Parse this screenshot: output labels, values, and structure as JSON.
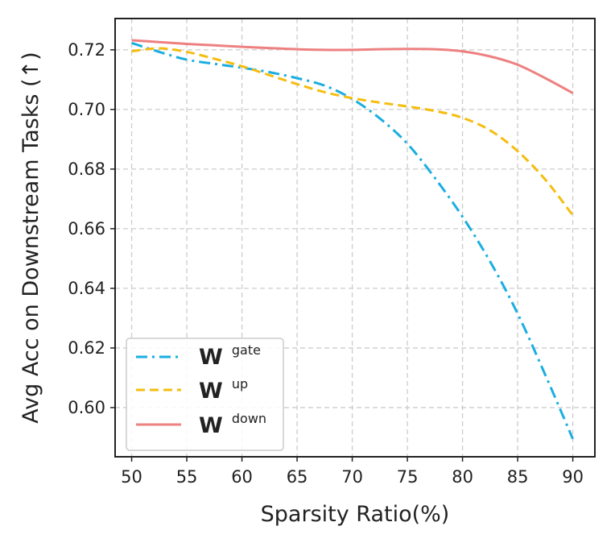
{
  "chart_data": {
    "type": "line",
    "title": "",
    "xlabel": "Sparsity Ratio(%)",
    "ylabel": "Avg Acc on Downstream Tasks (↑)",
    "xlim": [
      48.5,
      92
    ],
    "ylim": [
      0.5835,
      0.7305
    ],
    "xticks": [
      50,
      55,
      60,
      65,
      70,
      75,
      80,
      85,
      90
    ],
    "yticks": [
      0.6,
      0.62,
      0.64,
      0.66,
      0.68,
      0.7,
      0.72
    ],
    "ytick_labels": [
      "0.60",
      "0.62",
      "0.64",
      "0.66",
      "0.68",
      "0.70",
      "0.72"
    ],
    "grid": true,
    "legend_position": "lower-left",
    "series": [
      {
        "id": "gate",
        "base": "W",
        "sup": "gate",
        "color": "#1aaee0",
        "dash": "14 6 3 6",
        "x": [
          50,
          52.5,
          55,
          57.5,
          60,
          62.5,
          65,
          67.5,
          70,
          72.5,
          75,
          77.5,
          80,
          82.5,
          85,
          87.5,
          90
        ],
        "y": [
          0.7223,
          0.7193,
          0.7167,
          0.7153,
          0.714,
          0.7125,
          0.7105,
          0.708,
          0.7035,
          0.697,
          0.6885,
          0.677,
          0.664,
          0.649,
          0.6315,
          0.611,
          0.5895
        ]
      },
      {
        "id": "up",
        "base": "W",
        "sup": "up",
        "color": "#f5bd0f",
        "dash": "11 6",
        "x": [
          50,
          52.5,
          55,
          57.5,
          60,
          62.5,
          65,
          67.5,
          70,
          72.5,
          75,
          77.5,
          80,
          82.5,
          85,
          87.5,
          90
        ],
        "y": [
          0.7195,
          0.7205,
          0.7193,
          0.717,
          0.7145,
          0.7115,
          0.7085,
          0.7058,
          0.7038,
          0.7023,
          0.701,
          0.6995,
          0.6972,
          0.693,
          0.686,
          0.6765,
          0.6645
        ]
      },
      {
        "id": "down",
        "base": "W",
        "sup": "down",
        "color": "#ee8080",
        "dash": "",
        "x": [
          50,
          52.5,
          55,
          57.5,
          60,
          62.5,
          65,
          67.5,
          70,
          72.5,
          75,
          77.5,
          80,
          82.5,
          85,
          87.5,
          90
        ],
        "y": [
          0.7232,
          0.7226,
          0.722,
          0.7215,
          0.721,
          0.7206,
          0.7202,
          0.72,
          0.72,
          0.7202,
          0.7203,
          0.7202,
          0.7195,
          0.7178,
          0.715,
          0.7105,
          0.7055
        ]
      }
    ]
  }
}
